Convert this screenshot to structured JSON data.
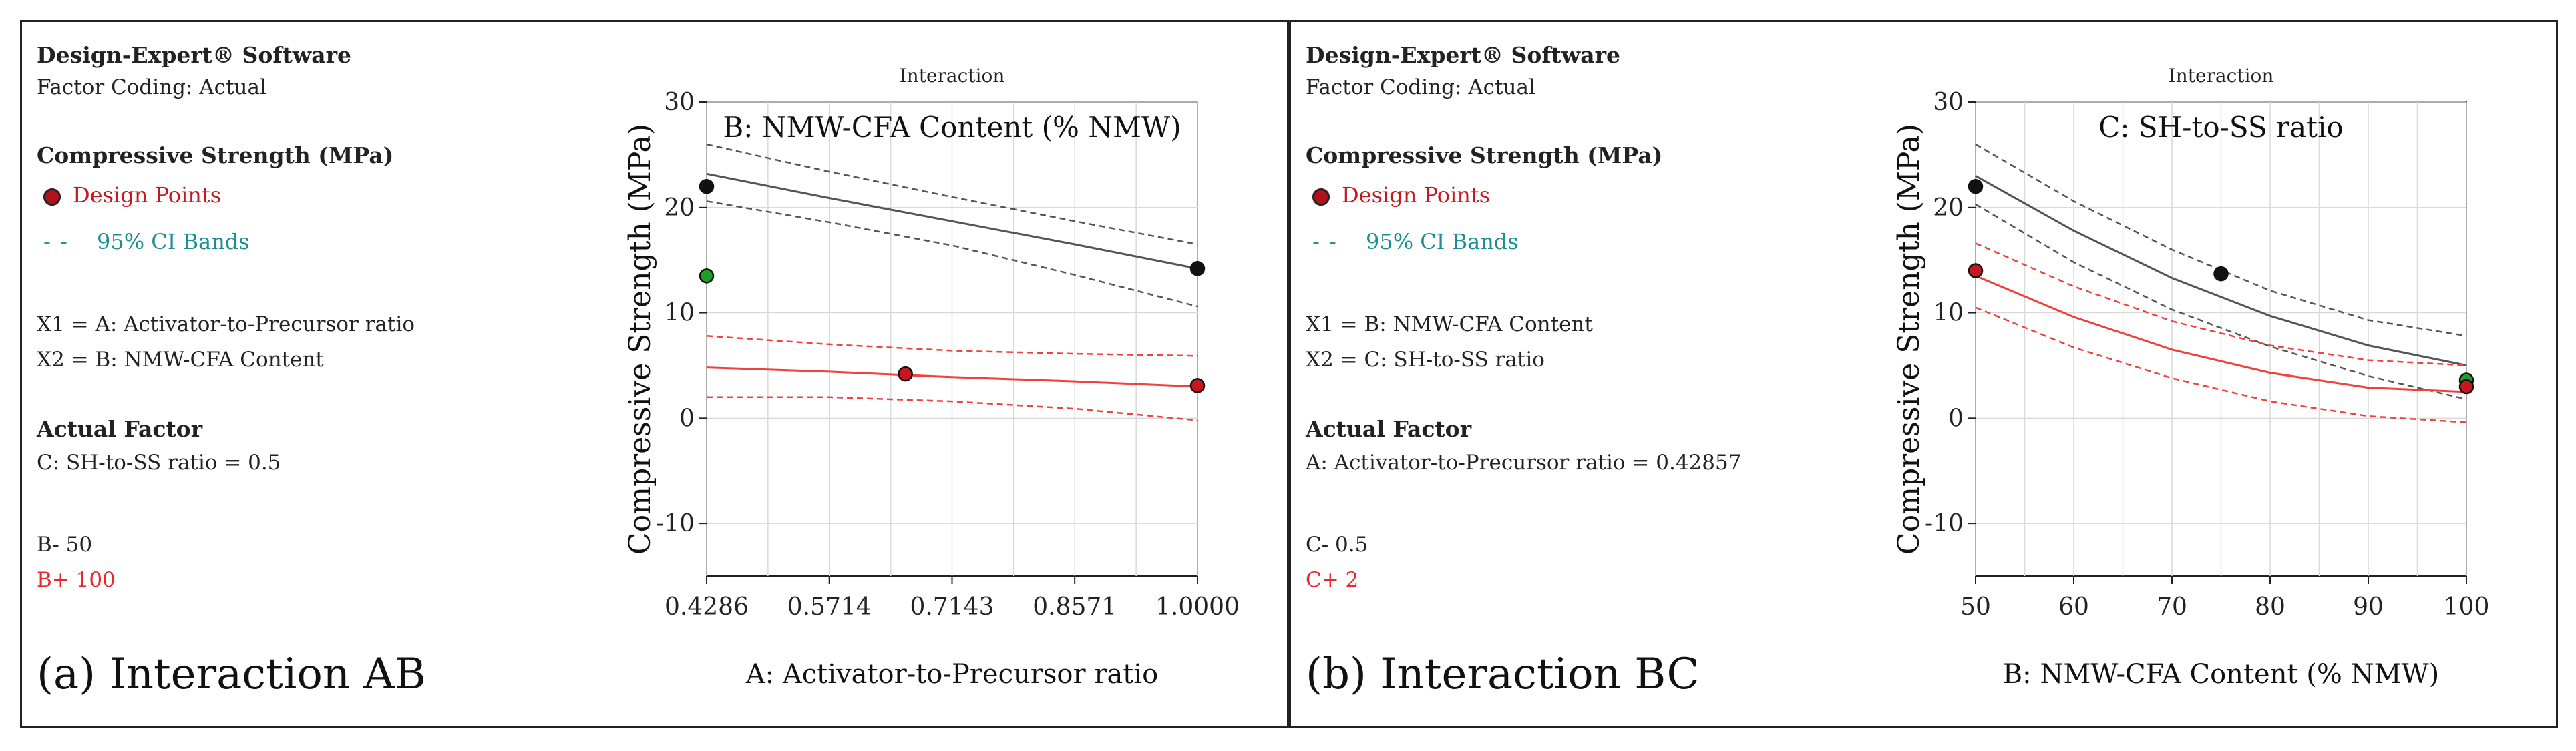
{
  "panels": [
    {
      "software": "Design-Expert® Software",
      "factor_coding": "Factor Coding: Actual",
      "response": "Compressive Strength (MPa)",
      "design_points_label": "Design Points",
      "ci_label": "95% CI Bands",
      "x1": "X1 = A: Activator-to-Precursor ratio",
      "x2": "X2 = B: NMW-CFA Content",
      "actual_factor_title": "Actual Factor",
      "actual_factor_value": "C: SH-to-SS ratio = 0.5",
      "series_low_label": "B- 50",
      "series_high_label": "B+ 100",
      "caption": "(a) Interaction AB"
    },
    {
      "software": "Design-Expert® Software",
      "factor_coding": "Factor Coding: Actual",
      "response": "Compressive Strength (MPa)",
      "design_points_label": "Design Points",
      "ci_label": "95% CI Bands",
      "x1": "X1 = B: NMW-CFA Content",
      "x2": "X2 = C: SH-to-SS ratio",
      "actual_factor_title": "Actual Factor",
      "actual_factor_value": "A: Activator-to-Precursor ratio = 0.42857",
      "series_low_label": "C- 0.5",
      "series_high_label": "C+ 2",
      "caption": "(b) Interaction BC"
    }
  ],
  "colors": {
    "low_series": "#555555",
    "high_series": "#f04040",
    "point_black": "#111111",
    "point_red": "#c8161e",
    "point_green": "#1f9e2c"
  },
  "chart_data": [
    {
      "type": "line",
      "title": "Interaction",
      "legend_title": "B: NMW-CFA Content (% NMW)",
      "xlabel": "A: Activator-to-Precursor ratio",
      "ylabel": "Compressive Strength (MPa)",
      "xlim": [
        0.4286,
        1.0
      ],
      "ylim": [
        -15,
        30
      ],
      "x_ticks": [
        0.4286,
        0.5714,
        0.7143,
        0.8571,
        1.0
      ],
      "x_tick_labels": [
        "0.4286",
        "0.5714",
        "0.7143",
        "0.8571",
        "1.0000"
      ],
      "y_ticks": [
        -10,
        0,
        10,
        20,
        30
      ],
      "y_tick_labels": [
        "-10",
        "0",
        "10",
        "20",
        "30"
      ],
      "x_grid": [
        0.4286,
        0.5,
        0.5714,
        0.6429,
        0.7143,
        0.7857,
        0.8571,
        0.9286,
        1.0
      ],
      "series": [
        {
          "name": "B- 50",
          "color": "#555555",
          "x": [
            0.4286,
            0.5714,
            0.7143,
            0.8571,
            1.0
          ],
          "y": [
            23.2,
            20.9,
            18.7,
            16.5,
            14.2
          ],
          "ci_lower": [
            20.6,
            18.6,
            16.4,
            13.6,
            10.6
          ],
          "ci_upper": [
            26.0,
            23.4,
            21.0,
            18.7,
            16.5
          ]
        },
        {
          "name": "B+ 100",
          "color": "#f04040",
          "x": [
            0.4286,
            0.5714,
            0.7143,
            0.8571,
            1.0
          ],
          "y": [
            4.8,
            4.4,
            3.9,
            3.5,
            3.0
          ],
          "ci_lower": [
            2.0,
            2.0,
            1.6,
            0.9,
            -0.2
          ],
          "ci_upper": [
            7.8,
            7.0,
            6.4,
            6.1,
            5.9
          ]
        }
      ],
      "points": [
        {
          "x": 0.4286,
          "y": 22.0,
          "color": "#111111"
        },
        {
          "x": 0.4286,
          "y": 13.5,
          "color": "#1f9e2c"
        },
        {
          "x": 0.66,
          "y": 4.2,
          "color": "#c8161e"
        },
        {
          "x": 1.0,
          "y": 14.2,
          "color": "#111111"
        },
        {
          "x": 1.0,
          "y": 3.1,
          "color": "#c8161e"
        }
      ]
    },
    {
      "type": "line",
      "title": "Interaction",
      "legend_title": "C: SH-to-SS ratio",
      "xlabel": "B: NMW-CFA Content (% NMW)",
      "ylabel": "Compressive Strength (MPa)",
      "xlim": [
        50,
        100
      ],
      "ylim": [
        -15,
        30
      ],
      "x_ticks": [
        50,
        60,
        70,
        80,
        90,
        100
      ],
      "x_tick_labels": [
        "50",
        "60",
        "70",
        "80",
        "90",
        "100"
      ],
      "y_ticks": [
        -10,
        0,
        10,
        20,
        30
      ],
      "y_tick_labels": [
        "-10",
        "0",
        "10",
        "20",
        "30"
      ],
      "x_grid": [
        50,
        55,
        60,
        65,
        70,
        75,
        80,
        85,
        90,
        95,
        100
      ],
      "series": [
        {
          "name": "C- 0.5",
          "color": "#555555",
          "x": [
            50,
            60,
            70,
            80,
            90,
            100
          ],
          "y": [
            23.0,
            17.8,
            13.3,
            9.7,
            6.9,
            5.0
          ],
          "ci_lower": [
            20.3,
            14.8,
            10.3,
            6.8,
            4.0,
            1.8
          ],
          "ci_upper": [
            26.0,
            20.6,
            16.0,
            12.1,
            9.3,
            7.8
          ]
        },
        {
          "name": "C+ 2",
          "color": "#f04040",
          "x": [
            50,
            60,
            70,
            80,
            90,
            100
          ],
          "y": [
            13.5,
            9.6,
            6.5,
            4.3,
            2.9,
            2.5
          ],
          "ci_lower": [
            10.5,
            6.7,
            3.8,
            1.6,
            0.2,
            -0.4
          ],
          "ci_upper": [
            16.6,
            12.5,
            9.2,
            6.9,
            5.5,
            5.0
          ]
        }
      ],
      "points": [
        {
          "x": 50,
          "y": 22.0,
          "color": "#111111"
        },
        {
          "x": 50,
          "y": 14.0,
          "color": "#c8161e"
        },
        {
          "x": 75,
          "y": 13.7,
          "color": "#111111"
        },
        {
          "x": 100,
          "y": 3.6,
          "color": "#1f9e2c"
        },
        {
          "x": 100,
          "y": 3.0,
          "color": "#c8161e"
        }
      ]
    }
  ]
}
